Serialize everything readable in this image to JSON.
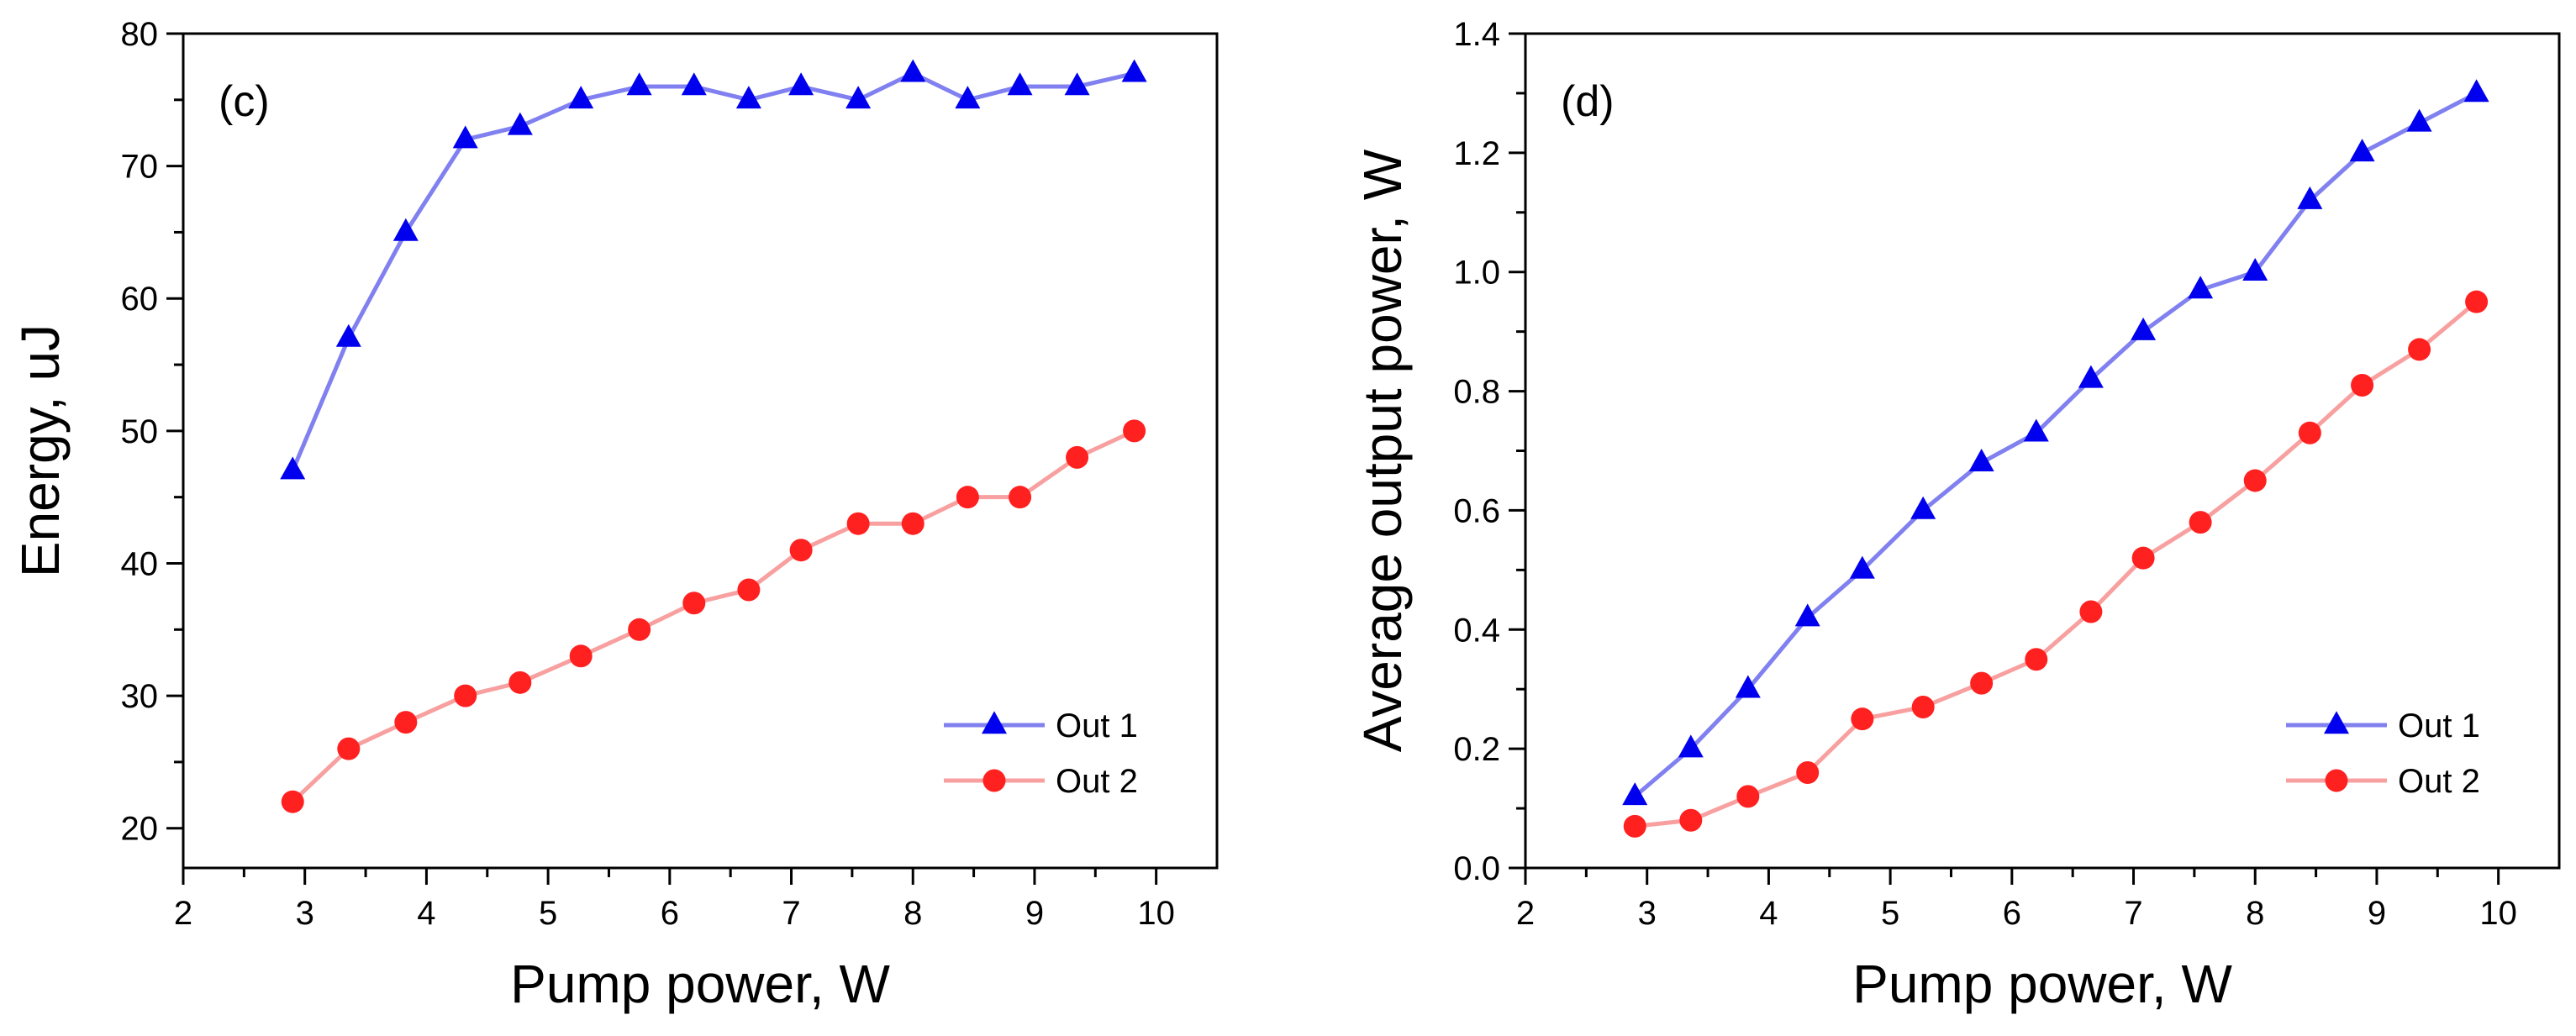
{
  "chart_data": [
    {
      "type": "line",
      "panel_label": "(c)",
      "title": "",
      "xlabel": "Pump power, W",
      "ylabel": "Energy, uJ",
      "xlim": [
        2,
        10.5
      ],
      "ylim": [
        17,
        80
      ],
      "xticks": [
        2,
        3,
        4,
        5,
        6,
        7,
        8,
        9,
        10
      ],
      "yticks": [
        20,
        30,
        40,
        50,
        60,
        70,
        80
      ],
      "legend_position": "bottom-right",
      "grid": false,
      "x": [
        2.9,
        3.36,
        3.83,
        4.32,
        4.77,
        5.27,
        5.75,
        6.2,
        6.65,
        7.08,
        7.55,
        8.0,
        8.45,
        8.88,
        9.35,
        9.82
      ],
      "series": [
        {
          "name": "Out 1",
          "marker": "triangle",
          "marker_color": "#0000ee",
          "line_color": "#8080f0",
          "values": [
            47,
            57,
            65,
            72,
            73,
            75,
            76,
            76,
            75,
            76,
            75,
            77,
            75,
            76,
            76,
            77
          ]
        },
        {
          "name": "Out 2",
          "marker": "circle",
          "marker_color": "#ff2020",
          "line_color": "#f8a0a0",
          "values": [
            22,
            26,
            28,
            30,
            31,
            33,
            35,
            37,
            38,
            41,
            43,
            43,
            45,
            45,
            48,
            50
          ]
        }
      ]
    },
    {
      "type": "line",
      "panel_label": "(d)",
      "title": "",
      "xlabel": "Pump power, W",
      "ylabel": "Average output power, W",
      "xlim": [
        2,
        10.5
      ],
      "ylim": [
        0,
        1.4
      ],
      "xticks": [
        2,
        3,
        4,
        5,
        6,
        7,
        8,
        9,
        10
      ],
      "yticks": [
        0.0,
        0.2,
        0.4,
        0.6,
        0.8,
        1.0,
        1.2,
        1.4
      ],
      "ytick_labels": [
        "0.0",
        "0.2",
        "0.4",
        "0.6",
        "0.8",
        "1.0",
        "1.2",
        "1.4"
      ],
      "legend_position": "bottom-right",
      "grid": false,
      "x": [
        2.9,
        3.36,
        3.83,
        4.32,
        4.77,
        5.27,
        5.75,
        6.2,
        6.65,
        7.08,
        7.55,
        8.0,
        8.45,
        8.88,
        9.35,
        9.82
      ],
      "series": [
        {
          "name": "Out 1",
          "marker": "triangle",
          "marker_color": "#0000ee",
          "line_color": "#8080f0",
          "values": [
            0.12,
            0.2,
            0.3,
            0.42,
            0.5,
            0.6,
            0.68,
            0.73,
            0.82,
            0.9,
            0.97,
            1.0,
            1.12,
            1.2,
            1.25,
            1.3
          ]
        },
        {
          "name": "Out 2",
          "marker": "circle",
          "marker_color": "#ff2020",
          "line_color": "#f8a0a0",
          "values": [
            0.07,
            0.08,
            0.12,
            0.16,
            0.25,
            0.27,
            0.31,
            0.35,
            0.43,
            0.52,
            0.58,
            0.65,
            0.73,
            0.81,
            0.87,
            0.95
          ]
        }
      ]
    }
  ]
}
